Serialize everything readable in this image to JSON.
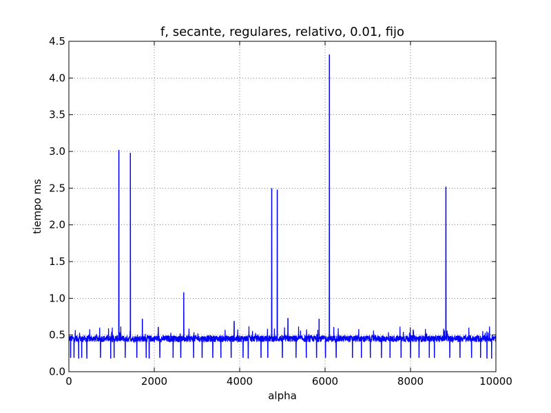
{
  "chart_data": {
    "type": "line",
    "title": "f, secante, regulares, relativo, 0.01, fijo",
    "xlabel": "alpha",
    "ylabel": "tiempo ms",
    "xlim": [
      0,
      10000
    ],
    "ylim": [
      0.0,
      4.5
    ],
    "x_ticks": [
      0,
      2000,
      4000,
      6000,
      8000,
      10000
    ],
    "x_tick_labels": [
      "0",
      "2000",
      "4000",
      "6000",
      "8000",
      "10000"
    ],
    "y_ticks": [
      0.0,
      0.5,
      1.0,
      1.5,
      2.0,
      2.5,
      3.0,
      3.5,
      4.0,
      4.5
    ],
    "y_tick_labels": [
      "0.0",
      "0.5",
      "1.0",
      "1.5",
      "2.0",
      "2.5",
      "3.0",
      "3.5",
      "4.0",
      "4.5"
    ],
    "grid": true,
    "series": [
      {
        "color": "#0000ff",
        "baseline": 0.45,
        "spikes": [
          {
            "x": 1170,
            "y": 3.02
          },
          {
            "x": 1440,
            "y": 2.98
          },
          {
            "x": 1720,
            "y": 0.72
          },
          {
            "x": 2690,
            "y": 1.08
          },
          {
            "x": 3870,
            "y": 0.69
          },
          {
            "x": 4750,
            "y": 2.5
          },
          {
            "x": 4880,
            "y": 2.48
          },
          {
            "x": 5130,
            "y": 0.73
          },
          {
            "x": 5860,
            "y": 0.72
          },
          {
            "x": 6100,
            "y": 4.32
          },
          {
            "x": 8830,
            "y": 2.52
          }
        ],
        "dips": [
          {
            "x": 40,
            "y": 0.19
          },
          {
            "x": 120,
            "y": 0.19
          },
          {
            "x": 230,
            "y": 0.18
          },
          {
            "x": 300,
            "y": 0.19
          },
          {
            "x": 420,
            "y": 0.18
          },
          {
            "x": 740,
            "y": 0.19
          },
          {
            "x": 980,
            "y": 0.18
          },
          {
            "x": 1060,
            "y": 0.19
          },
          {
            "x": 1320,
            "y": 0.19
          },
          {
            "x": 1590,
            "y": 0.19
          },
          {
            "x": 1810,
            "y": 0.19
          },
          {
            "x": 1880,
            "y": 0.18
          },
          {
            "x": 2130,
            "y": 0.19
          },
          {
            "x": 2440,
            "y": 0.19
          },
          {
            "x": 2620,
            "y": 0.19
          },
          {
            "x": 2920,
            "y": 0.19
          },
          {
            "x": 3120,
            "y": 0.19
          },
          {
            "x": 3370,
            "y": 0.19
          },
          {
            "x": 3560,
            "y": 0.19
          },
          {
            "x": 3800,
            "y": 0.19
          },
          {
            "x": 4080,
            "y": 0.19
          },
          {
            "x": 4200,
            "y": 0.18
          },
          {
            "x": 4500,
            "y": 0.19
          },
          {
            "x": 4660,
            "y": 0.19
          },
          {
            "x": 5000,
            "y": 0.19
          },
          {
            "x": 5320,
            "y": 0.19
          },
          {
            "x": 5560,
            "y": 0.19
          },
          {
            "x": 5800,
            "y": 0.19
          },
          {
            "x": 6010,
            "y": 0.19
          },
          {
            "x": 6260,
            "y": 0.19
          },
          {
            "x": 6640,
            "y": 0.19
          },
          {
            "x": 6850,
            "y": 0.19
          },
          {
            "x": 7060,
            "y": 0.19
          },
          {
            "x": 7320,
            "y": 0.19
          },
          {
            "x": 7520,
            "y": 0.19
          },
          {
            "x": 7780,
            "y": 0.19
          },
          {
            "x": 8000,
            "y": 0.19
          },
          {
            "x": 8200,
            "y": 0.19
          },
          {
            "x": 8440,
            "y": 0.19
          },
          {
            "x": 8560,
            "y": 0.19
          },
          {
            "x": 8920,
            "y": 0.19
          },
          {
            "x": 9160,
            "y": 0.19
          },
          {
            "x": 9430,
            "y": 0.19
          },
          {
            "x": 9640,
            "y": 0.19
          },
          {
            "x": 9790,
            "y": 0.18
          },
          {
            "x": 9900,
            "y": 0.18
          }
        ]
      }
    ]
  }
}
